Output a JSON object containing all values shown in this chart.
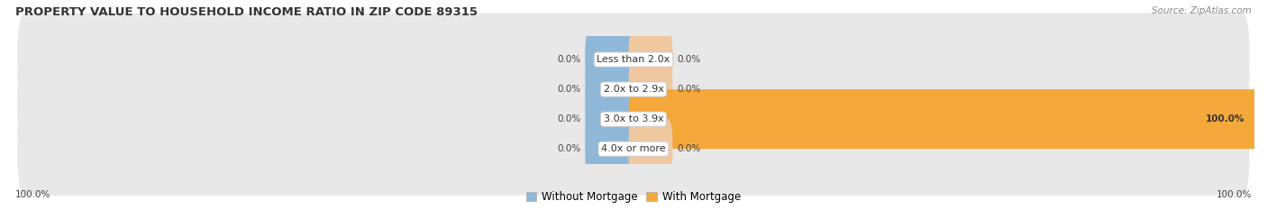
{
  "title": "PROPERTY VALUE TO HOUSEHOLD INCOME RATIO IN ZIP CODE 89315",
  "source": "Source: ZipAtlas.com",
  "categories": [
    "Less than 2.0x",
    "2.0x to 2.9x",
    "3.0x to 3.9x",
    "4.0x or more"
  ],
  "without_mortgage": [
    0.0,
    0.0,
    0.0,
    0.0
  ],
  "with_mortgage": [
    0.0,
    0.0,
    100.0,
    0.0
  ],
  "left_label": "100.0%",
  "right_label": "100.0%",
  "color_without": "#8fb8d8",
  "color_with_small": "#f0c8a0",
  "color_with_full": "#f5a83a",
  "row_bg": "#e8e8e8",
  "bg_main": "#ffffff",
  "title_fontsize": 9.5,
  "source_fontsize": 7.5,
  "label_fontsize": 8,
  "legend_fontsize": 8.5,
  "bar_label_fontsize": 7.5
}
